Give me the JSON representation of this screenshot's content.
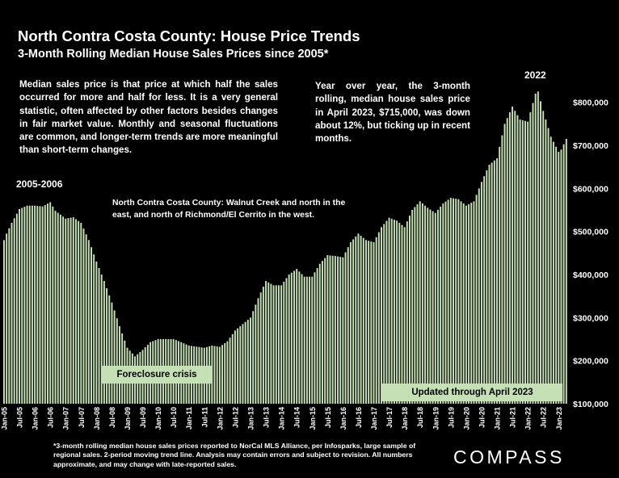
{
  "header": {
    "title": "North Contra Costa County: House Price Trends",
    "subtitle": "3-Month Rolling Median House Sales Prices since 2005*"
  },
  "notes": {
    "left": "Median sales price is that price at which half the sales occurred for more and half for less. It is a very general statistic, often affected by other factors besides changes in fair market value. Monthly and seasonal fluctuations are common, and longer-term trends are more meaningful than short-term changes.",
    "right": "Year over year, the 3-month rolling, median house sales price in April 2023, $715,000, was down about 12%, but ticking up in recent months."
  },
  "annotations": {
    "peak_2005": "2005-2006",
    "peak_2022": "2022",
    "region": "North Contra Costa County: Walnut Creek and north in the east, and north of Richmond/El Cerrito in the west.",
    "foreclosure": "Foreclosure crisis",
    "updated": "Updated through April 2023"
  },
  "footnote": "*3-month rolling median house sales prices reported to NorCal MLS Alliance, per Infosparks, large sample of regional sales. 2-period moving trend line. Analysis may contain errors and subject to revision. All numbers approximate, and may change with late-reported sales.",
  "brand": "COMPASS",
  "colors": {
    "bar": "#c5e0b4",
    "background": "#000000",
    "text": "#ffffff"
  },
  "chart_data": {
    "type": "bar",
    "ylim": [
      100000,
      850000
    ],
    "y_ticks": [
      100000,
      200000,
      300000,
      400000,
      500000,
      600000,
      700000,
      800000
    ],
    "y_tick_labels": [
      "$100,000",
      "$200,000",
      "$300,000",
      "$400,000",
      "$500,000",
      "$600,000",
      "$700,000",
      "$800,000"
    ],
    "x_tick_labels": [
      "Jan-05",
      "Jul-05",
      "Jan-06",
      "Jul-06",
      "Jan-07",
      "Jul-07",
      "Jan-08",
      "Jul-08",
      "Jan-09",
      "Jul-09",
      "Jan-10",
      "Jul-10",
      "Jan-11",
      "Jul-11",
      "Jan-12",
      "Jul-12",
      "Jan-13",
      "Jul-13",
      "Jan-14",
      "Jul-14",
      "Jan-15",
      "Jul-15",
      "Jan-16",
      "Jul-16",
      "Jan-17",
      "Jul-17",
      "Jan-18",
      "Jul-18",
      "Jan-19",
      "Jul-19",
      "Jan-20",
      "Jul-20",
      "Jan-21",
      "Jul-21",
      "Jan-22",
      "Jul-22",
      "Jan-23"
    ],
    "start": "Jan-05",
    "end": "Apr-23",
    "keypoints": [
      [
        "Jan-05",
        480000
      ],
      [
        "Feb-05",
        495000
      ],
      [
        "Apr-05",
        520000
      ],
      [
        "Jul-05",
        552000
      ],
      [
        "Oct-05",
        560000
      ],
      [
        "Jan-06",
        560000
      ],
      [
        "Apr-06",
        558000
      ],
      [
        "Jul-06",
        568000
      ],
      [
        "Sep-06",
        548000
      ],
      [
        "Jan-07",
        530000
      ],
      [
        "Apr-07",
        533000
      ],
      [
        "Jul-07",
        520000
      ],
      [
        "Oct-07",
        480000
      ],
      [
        "Jan-08",
        430000
      ],
      [
        "Apr-08",
        385000
      ],
      [
        "Jul-08",
        335000
      ],
      [
        "Oct-08",
        280000
      ],
      [
        "Jan-09",
        230000
      ],
      [
        "Apr-09",
        210000
      ],
      [
        "Jul-09",
        225000
      ],
      [
        "Oct-09",
        243000
      ],
      [
        "Jan-10",
        250000
      ],
      [
        "Jul-10",
        250000
      ],
      [
        "Oct-10",
        243000
      ],
      [
        "Jan-11",
        235000
      ],
      [
        "Jul-11",
        230000
      ],
      [
        "Oct-11",
        235000
      ],
      [
        "Jan-12",
        232000
      ],
      [
        "Apr-12",
        245000
      ],
      [
        "Jul-12",
        270000
      ],
      [
        "Oct-12",
        285000
      ],
      [
        "Jan-13",
        300000
      ],
      [
        "Apr-13",
        345000
      ],
      [
        "Jul-13",
        385000
      ],
      [
        "Oct-13",
        375000
      ],
      [
        "Jan-14",
        375000
      ],
      [
        "Apr-14",
        400000
      ],
      [
        "Jul-14",
        413000
      ],
      [
        "Oct-14",
        395000
      ],
      [
        "Jan-15",
        395000
      ],
      [
        "Apr-15",
        425000
      ],
      [
        "Jul-15",
        445000
      ],
      [
        "Oct-15",
        443000
      ],
      [
        "Jan-16",
        440000
      ],
      [
        "Apr-16",
        475000
      ],
      [
        "Jul-16",
        495000
      ],
      [
        "Oct-16",
        480000
      ],
      [
        "Jan-17",
        475000
      ],
      [
        "Apr-17",
        510000
      ],
      [
        "Jul-17",
        532000
      ],
      [
        "Oct-17",
        525000
      ],
      [
        "Jan-18",
        510000
      ],
      [
        "Apr-18",
        550000
      ],
      [
        "Jul-18",
        570000
      ],
      [
        "Oct-18",
        555000
      ],
      [
        "Jan-19",
        543000
      ],
      [
        "Apr-19",
        565000
      ],
      [
        "Jul-19",
        578000
      ],
      [
        "Oct-19",
        575000
      ],
      [
        "Jan-20",
        560000
      ],
      [
        "Apr-20",
        570000
      ],
      [
        "Jul-20",
        615000
      ],
      [
        "Oct-20",
        655000
      ],
      [
        "Jan-21",
        670000
      ],
      [
        "Apr-21",
        750000
      ],
      [
        "Jul-21",
        790000
      ],
      [
        "Oct-21",
        760000
      ],
      [
        "Jan-22",
        755000
      ],
      [
        "Apr-22",
        820000
      ],
      [
        "May-22",
        825000
      ],
      [
        "Jul-22",
        780000
      ],
      [
        "Oct-22",
        720000
      ],
      [
        "Jan-23",
        685000
      ],
      [
        "Feb-23",
        690000
      ],
      [
        "Apr-23",
        715000
      ]
    ]
  }
}
